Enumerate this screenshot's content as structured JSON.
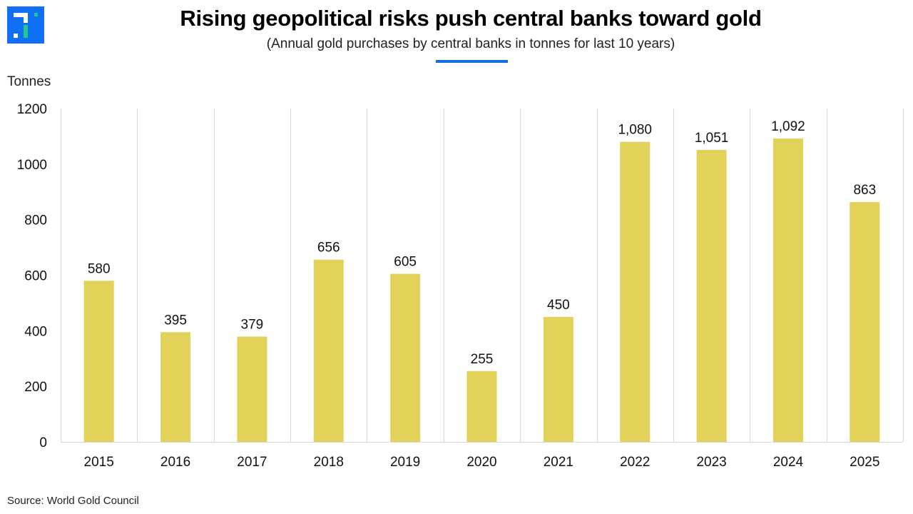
{
  "header": {
    "title": "Rising geopolitical risks push central banks toward gold",
    "subtitle": "(Annual gold purchases by central banks in tonnes for last 10 years)",
    "accent_color": "#1470e0"
  },
  "logo": {
    "icon": "brand-logo-icon",
    "background_color": "#0f6ff5",
    "accent_color": "#22c98a"
  },
  "footer": {
    "source": "Source: World Gold Council"
  },
  "chart_data": {
    "type": "bar",
    "title": "Rising geopolitical risks push central banks toward gold",
    "subtitle": "(Annual gold purchases by central banks in tonnes for last 10 years)",
    "xlabel": "",
    "ylabel": "Tonnes",
    "categories": [
      "2015",
      "2016",
      "2017",
      "2018",
      "2019",
      "2020",
      "2021",
      "2022",
      "2023",
      "2024",
      "2025"
    ],
    "values": [
      580,
      395,
      379,
      656,
      605,
      255,
      450,
      1080,
      1051,
      1092,
      863
    ],
    "data_labels": [
      "580",
      "395",
      "379",
      "656",
      "605",
      "255",
      "450",
      "1,080",
      "1,051",
      "1,092",
      "863"
    ],
    "ylim": [
      0,
      1200
    ],
    "yticks": [
      0,
      200,
      400,
      600,
      800,
      1000,
      1200
    ],
    "ytick_labels": [
      "0",
      "200",
      "400",
      "600",
      "800",
      "1000",
      "1200"
    ],
    "grid": "vertical category separators only",
    "legend": "none",
    "bar_color": "#e3d25a"
  }
}
